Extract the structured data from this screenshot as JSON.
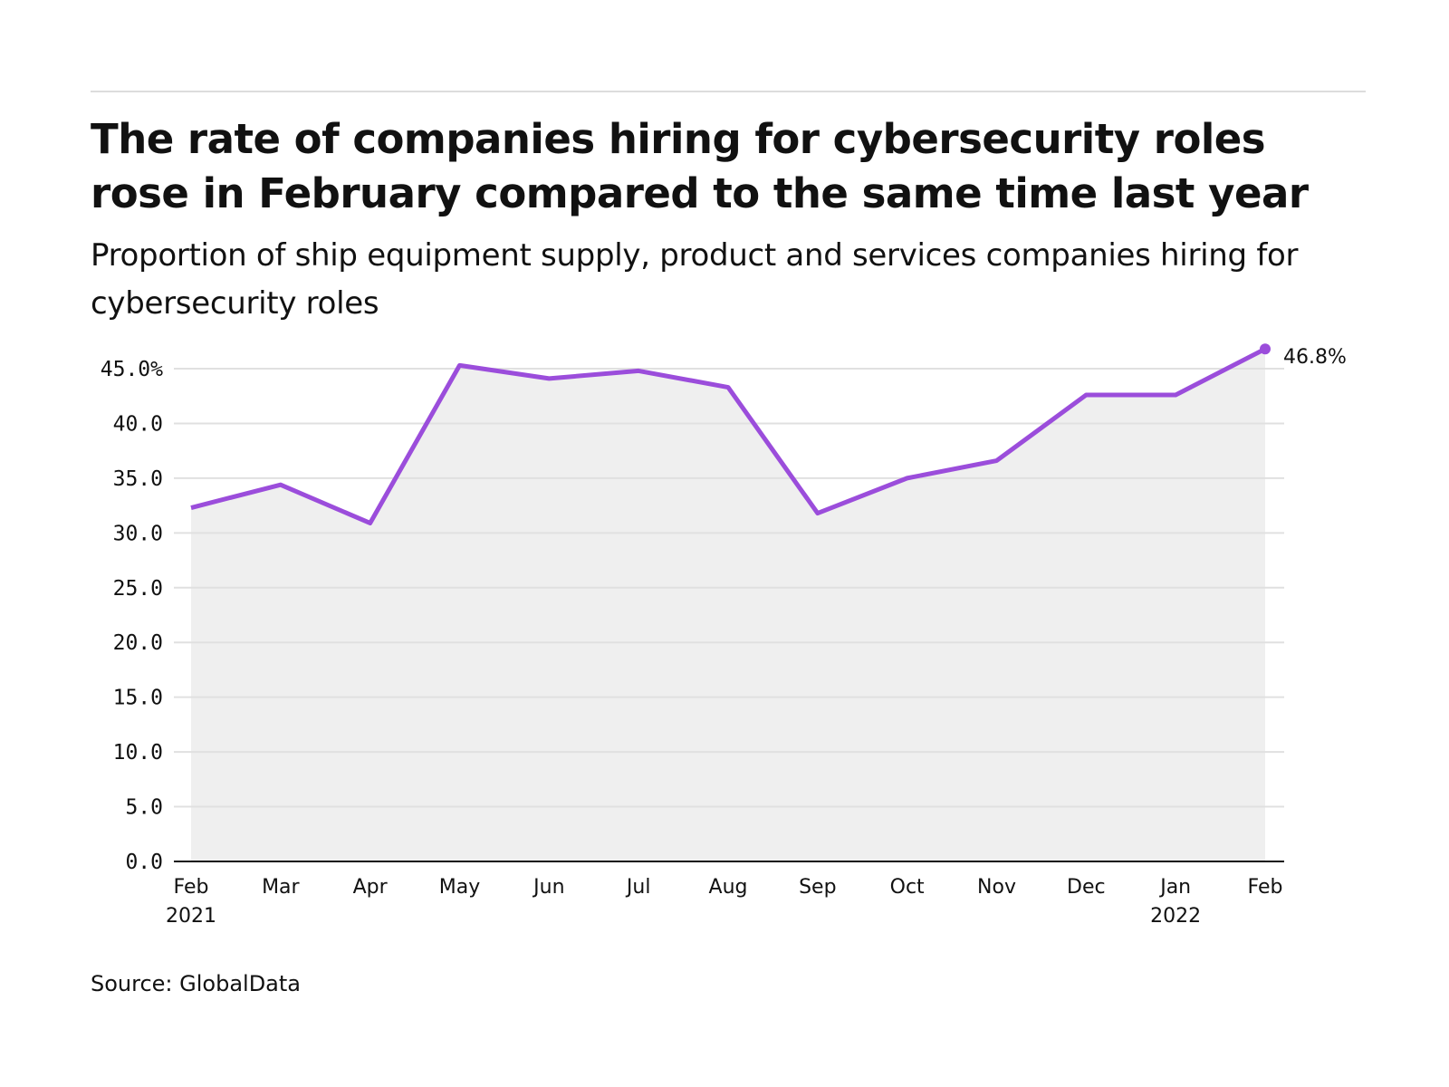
{
  "header": {
    "title": "The rate of companies hiring for cybersecurity roles rose in February compared to the same time last year",
    "subtitle": "Proportion of ship equipment supply, product and services companies hiring for cybersecurity roles"
  },
  "footer": {
    "source": "Source: GlobalData"
  },
  "chart_data": {
    "type": "area",
    "title": "The rate of companies hiring for cybersecurity roles rose in February compared to the same time last year",
    "subtitle": "Proportion of ship equipment supply, product and services companies hiring for cybersecurity roles",
    "xlabel": "",
    "ylabel": "",
    "categories": [
      "Feb 2021",
      "Mar",
      "Apr",
      "May",
      "Jun",
      "Jul",
      "Aug",
      "Sep",
      "Oct",
      "Nov",
      "Dec",
      "Jan 2022",
      "Feb"
    ],
    "x_tick_labels": [
      [
        "Feb",
        "2021"
      ],
      [
        "Mar"
      ],
      [
        "Apr"
      ],
      [
        "May"
      ],
      [
        "Jun"
      ],
      [
        "Jul"
      ],
      [
        "Aug"
      ],
      [
        "Sep"
      ],
      [
        "Oct"
      ],
      [
        "Nov"
      ],
      [
        "Dec"
      ],
      [
        "Jan",
        "2022"
      ],
      [
        "Feb"
      ]
    ],
    "values": [
      32.3,
      34.4,
      30.9,
      45.3,
      44.1,
      44.8,
      43.3,
      31.8,
      35.0,
      36.6,
      42.6,
      42.6,
      46.8
    ],
    "unit": "%",
    "ylim": [
      0,
      47
    ],
    "y_ticks": [
      0,
      5,
      10,
      15,
      20,
      25,
      30,
      35,
      40,
      45
    ],
    "y_tick_labels": [
      "0.0",
      "5.0",
      "10.0",
      "15.0",
      "20.0",
      "25.0",
      "30.0",
      "35.0",
      "40.0",
      "45.0%"
    ],
    "end_label": "46.8%",
    "grid": true,
    "line_color": "#9b4ddb",
    "fill_color": "#efefef",
    "grid_color": "#e0e0e0"
  }
}
